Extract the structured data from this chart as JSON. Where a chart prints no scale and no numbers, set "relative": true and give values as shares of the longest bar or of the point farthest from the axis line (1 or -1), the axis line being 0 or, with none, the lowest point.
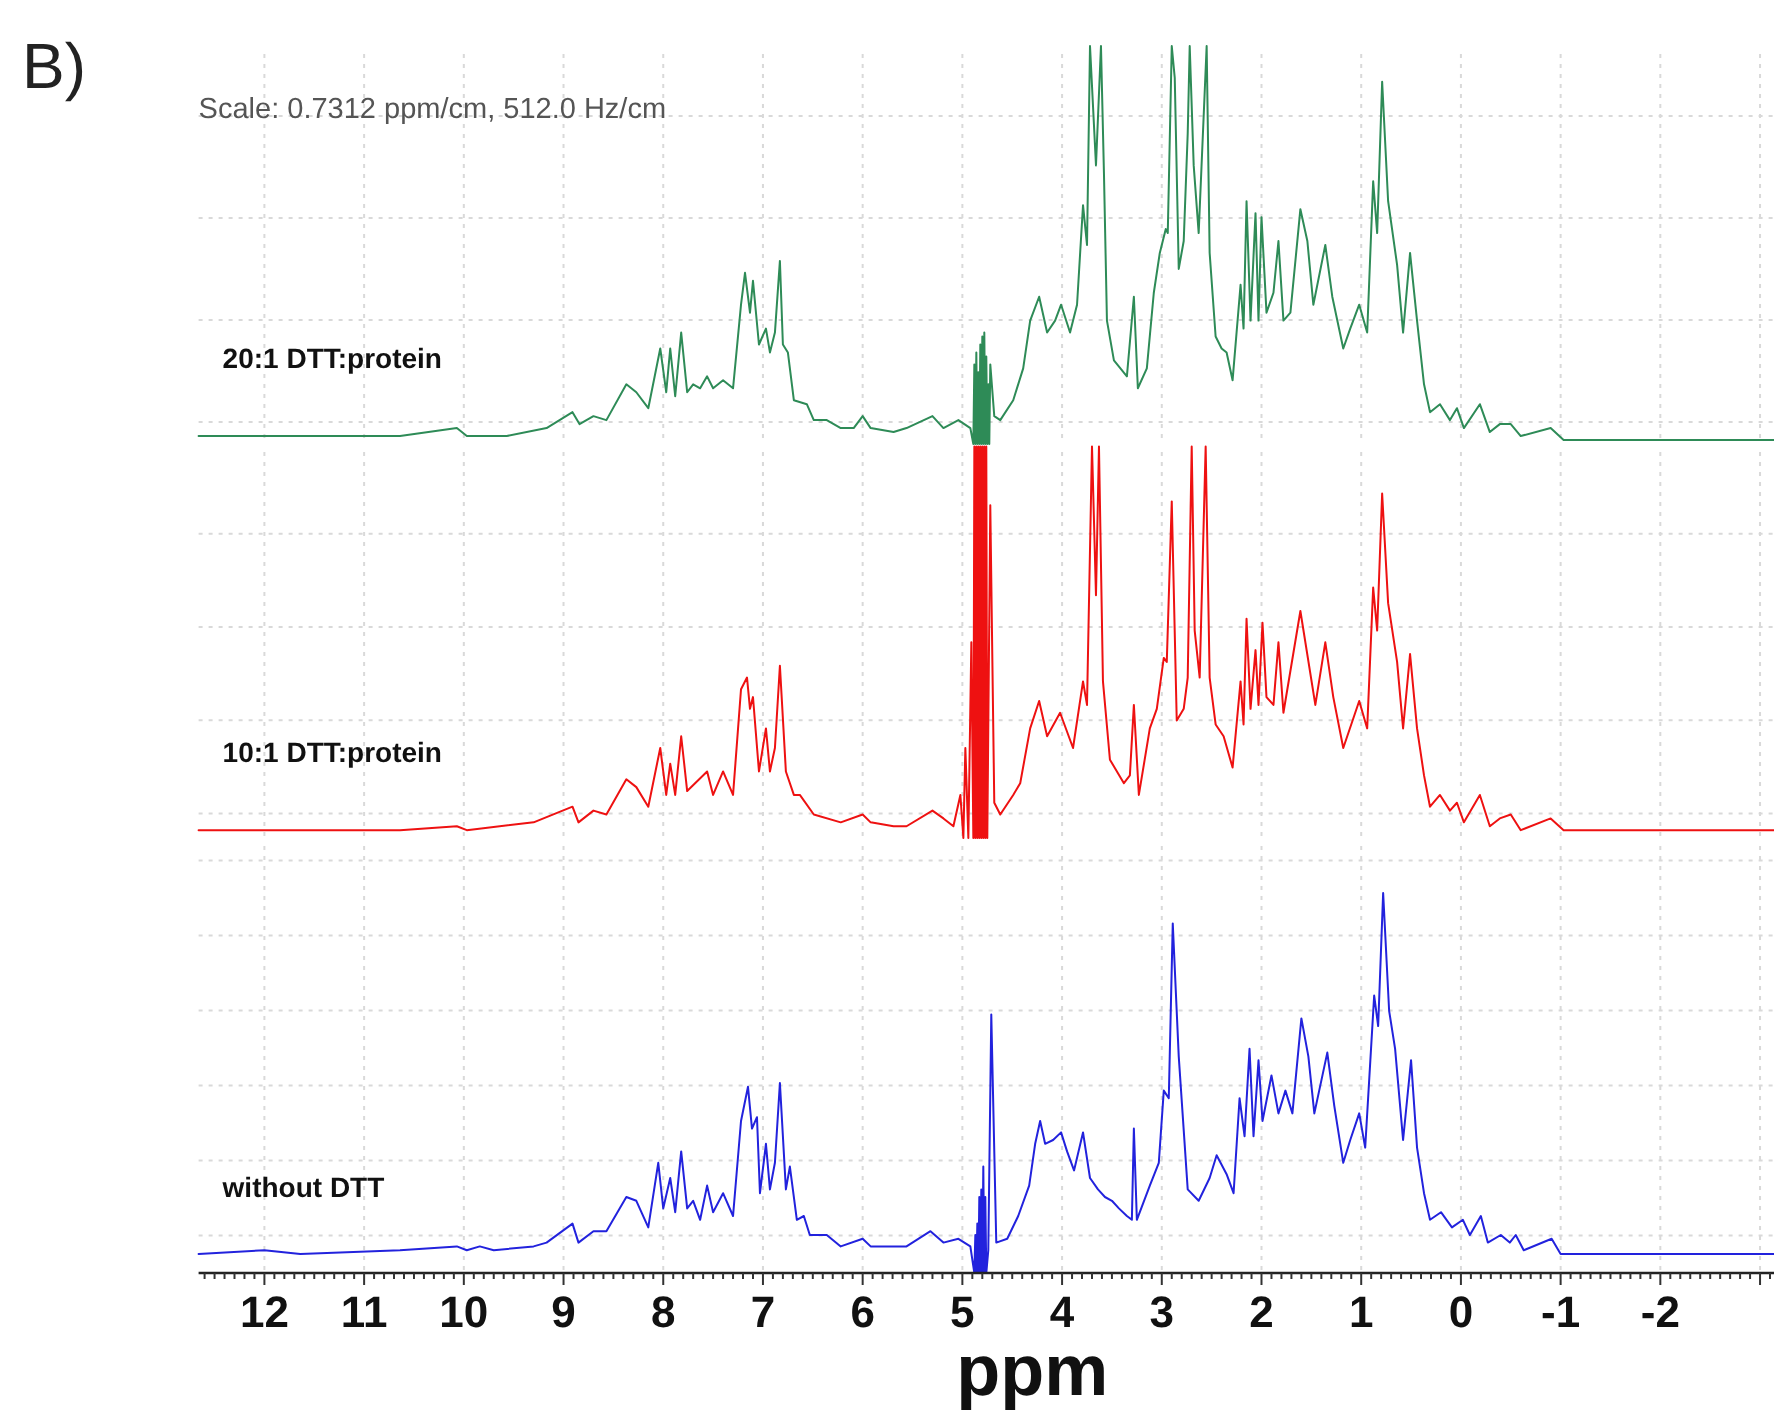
{
  "chart_data": [
    {
      "type": "line",
      "title": "B)",
      "annotations": [
        "Scale: 0.7312 ppm/cm, 512.0 Hz/cm"
      ],
      "relative": true,
      "grid": true,
      "tick_labels": false,
      "xlim": [
        12.66,
        -3.14
      ],
      "xticks": [
        12,
        11,
        10,
        9,
        8,
        7,
        6,
        5,
        4,
        3,
        2,
        1,
        0,
        -1,
        -2,
        -3
      ],
      "x": [
        12.66,
        11.98,
        10.64,
        10.07,
        9.97,
        9.57,
        9.17,
        8.91,
        8.84,
        8.7,
        8.57,
        8.37,
        8.27,
        8.15,
        8.03,
        7.97,
        7.93,
        7.88,
        7.82,
        7.76,
        7.7,
        7.63,
        7.56,
        7.5,
        7.4,
        7.3,
        7.22,
        7.18,
        7.13,
        7.1,
        7.04,
        6.97,
        6.93,
        6.88,
        6.83,
        6.8,
        6.75,
        6.69,
        6.56,
        6.49,
        6.36,
        6.22,
        6.09,
        6,
        5.92,
        5.69,
        5.56,
        5.3,
        5.19,
        5.04,
        4.92,
        4.89,
        4.88,
        4.87,
        4.86,
        4.85,
        4.84,
        4.83,
        4.82,
        4.81,
        4.8,
        4.79,
        4.78,
        4.77,
        4.76,
        4.75,
        4.74,
        4.73,
        4.72,
        4.68,
        4.62,
        4.49,
        4.39,
        4.32,
        4.23,
        4.15,
        4.07,
        4.01,
        3.92,
        3.85,
        3.79,
        3.75,
        3.72,
        3.66,
        3.61,
        3.58,
        3.55,
        3.48,
        3.35,
        3.28,
        3.24,
        3.15,
        3.08,
        3.02,
        2.96,
        2.94,
        2.9,
        2.87,
        2.83,
        2.78,
        2.74,
        2.72,
        2.68,
        2.63,
        2.55,
        2.52,
        2.46,
        2.4,
        2.35,
        2.29,
        2.21,
        2.18,
        2.15,
        2.11,
        2.06,
        2.03,
        2,
        1.95,
        1.88,
        1.83,
        1.78,
        1.71,
        1.61,
        1.54,
        1.48,
        1.36,
        1.29,
        1.18,
        1.11,
        1.02,
        0.94,
        0.88,
        0.84,
        0.79,
        0.73,
        0.64,
        0.58,
        0.51,
        0.44,
        0.37,
        0.31,
        0.21,
        0.11,
        0.04,
        -0.03,
        -0.19,
        -0.29,
        -0.39,
        -0.5,
        -0.6,
        -0.9,
        -1.03,
        -3.14
      ],
      "series": [
        {
          "name": "20:1 DTT:protein",
          "color": "#2e8b57",
          "values": [
            0.02,
            0.02,
            0.02,
            0.04,
            0.02,
            0.02,
            0.04,
            0.08,
            0.05,
            0.07,
            0.06,
            0.15,
            0.13,
            0.09,
            0.24,
            0.13,
            0.24,
            0.12,
            0.28,
            0.13,
            0.15,
            0.14,
            0.17,
            0.14,
            0.16,
            0.14,
            0.35,
            0.43,
            0.33,
            0.41,
            0.25,
            0.29,
            0.23,
            0.28,
            0.46,
            0.25,
            0.23,
            0.11,
            0.1,
            0.06,
            0.06,
            0.04,
            0.04,
            0.07,
            0.04,
            0.03,
            0.04,
            0.07,
            0.04,
            0.06,
            0.04,
            0,
            0.2,
            0,
            0.23,
            0,
            0.18,
            0,
            0.25,
            0,
            0.27,
            0,
            0.28,
            0,
            0.22,
            0,
            0.15,
            0,
            0.2,
            0.07,
            0.06,
            0.11,
            0.19,
            0.31,
            0.37,
            0.28,
            0.31,
            0.35,
            0.28,
            0.35,
            0.6,
            0.5,
            1,
            0.7,
            1,
            0.68,
            0.31,
            0.21,
            0.17,
            0.37,
            0.14,
            0.19,
            0.38,
            0.48,
            0.54,
            0.53,
            1,
            0.92,
            0.44,
            0.51,
            0.78,
            1,
            0.7,
            0.53,
            1,
            0.48,
            0.27,
            0.24,
            0.23,
            0.16,
            0.4,
            0.29,
            0.61,
            0.31,
            0.58,
            0.31,
            0.57,
            0.33,
            0.38,
            0.51,
            0.31,
            0.33,
            0.59,
            0.51,
            0.35,
            0.5,
            0.37,
            0.24,
            0.29,
            0.35,
            0.28,
            0.66,
            0.53,
            0.91,
            0.61,
            0.45,
            0.28,
            0.48,
            0.31,
            0.15,
            0.08,
            0.1,
            0.06,
            0.09,
            0.04,
            0.1,
            0.03,
            0.05,
            0.05,
            0.02,
            0.04,
            0.01,
            0.01
          ]
        }
      ]
    },
    {
      "type": "line",
      "relative": true,
      "grid": true,
      "tick_labels": false,
      "xlim": [
        12.66,
        -3.14
      ],
      "xticks": [
        12,
        11,
        10,
        9,
        8,
        7,
        6,
        5,
        4,
        3,
        2,
        1,
        0,
        -1,
        -2,
        -3
      ],
      "x": [
        12.66,
        11.98,
        10.64,
        10.07,
        9.97,
        9.3,
        8.91,
        8.85,
        8.7,
        8.57,
        8.37,
        8.27,
        8.15,
        8.03,
        7.97,
        7.93,
        7.88,
        7.82,
        7.76,
        7.56,
        7.5,
        7.4,
        7.3,
        7.22,
        7.16,
        7.13,
        7.1,
        7.04,
        6.97,
        6.93,
        6.88,
        6.83,
        6.77,
        6.69,
        6.63,
        6.49,
        6.22,
        6,
        5.92,
        5.69,
        5.56,
        5.3,
        5.19,
        5.09,
        5.02,
        4.99,
        4.97,
        4.94,
        4.91,
        4.89,
        4.88,
        4.87,
        4.86,
        4.85,
        4.84,
        4.83,
        4.82,
        4.81,
        4.8,
        4.79,
        4.78,
        4.77,
        4.76,
        4.75,
        4.72,
        4.68,
        4.62,
        4.49,
        4.42,
        4.32,
        4.23,
        4.15,
        4.02,
        3.89,
        3.79,
        3.75,
        3.7,
        3.66,
        3.63,
        3.59,
        3.52,
        3.38,
        3.32,
        3.28,
        3.23,
        3.12,
        3.05,
        2.98,
        2.95,
        2.9,
        2.85,
        2.78,
        2.74,
        2.7,
        2.67,
        2.62,
        2.56,
        2.52,
        2.46,
        2.38,
        2.29,
        2.21,
        2.18,
        2.15,
        2.11,
        2.06,
        2.03,
        1.99,
        1.95,
        1.88,
        1.83,
        1.78,
        1.61,
        1.46,
        1.36,
        1.28,
        1.18,
        1.02,
        0.94,
        0.88,
        0.84,
        0.79,
        0.73,
        0.64,
        0.58,
        0.51,
        0.44,
        0.37,
        0.31,
        0.21,
        0.11,
        0.04,
        -0.03,
        -0.19,
        -0.29,
        -0.39,
        -0.5,
        -0.6,
        -0.9,
        -1.03,
        -3.14
      ],
      "series": [
        {
          "name": "10:1 DTT:protein",
          "color": "#ee1111",
          "values": [
            0.02,
            0.02,
            0.02,
            0.03,
            0.02,
            0.04,
            0.08,
            0.04,
            0.07,
            0.06,
            0.15,
            0.13,
            0.08,
            0.23,
            0.11,
            0.19,
            0.11,
            0.26,
            0.12,
            0.17,
            0.11,
            0.17,
            0.11,
            0.38,
            0.41,
            0.33,
            0.36,
            0.17,
            0.28,
            0.17,
            0.23,
            0.44,
            0.17,
            0.11,
            0.11,
            0.06,
            0.04,
            0.06,
            0.04,
            0.03,
            0.03,
            0.07,
            0.05,
            0.03,
            0.11,
            0,
            0.23,
            0,
            0.5,
            0,
            1,
            0,
            1,
            0,
            1,
            0,
            1,
            0,
            1,
            0,
            1,
            0,
            1,
            0,
            0.85,
            0.09,
            0.06,
            0.11,
            0.14,
            0.28,
            0.35,
            0.26,
            0.32,
            0.23,
            0.4,
            0.34,
            1,
            0.62,
            1,
            0.4,
            0.2,
            0.14,
            0.16,
            0.34,
            0.11,
            0.28,
            0.33,
            0.46,
            0.45,
            0.86,
            0.3,
            0.33,
            0.41,
            1,
            0.53,
            0.41,
            1,
            0.41,
            0.29,
            0.26,
            0.18,
            0.4,
            0.29,
            0.56,
            0.33,
            0.48,
            0.34,
            0.55,
            0.36,
            0.34,
            0.5,
            0.32,
            0.58,
            0.34,
            0.5,
            0.36,
            0.23,
            0.35,
            0.28,
            0.64,
            0.53,
            0.88,
            0.6,
            0.45,
            0.28,
            0.47,
            0.28,
            0.16,
            0.08,
            0.11,
            0.07,
            0.09,
            0.04,
            0.11,
            0.03,
            0.05,
            0.06,
            0.02,
            0.05,
            0.02,
            0.02
          ]
        }
      ]
    },
    {
      "type": "line",
      "relative": true,
      "grid": true,
      "xlabel": "ppm",
      "xlim": [
        12.66,
        -3.14
      ],
      "xticks": [
        {
          "value": 12.6,
          "label": null
        },
        {
          "value": 12.5,
          "label": null
        },
        {
          "value": 12.4,
          "label": null
        },
        {
          "value": 12.3,
          "label": null
        },
        {
          "value": 12.2,
          "label": null
        },
        {
          "value": 12.1,
          "label": null
        },
        12,
        {
          "value": 11.9,
          "label": null
        },
        {
          "value": 11.8,
          "label": null
        },
        {
          "value": 11.7,
          "label": null
        },
        {
          "value": 11.6,
          "label": null
        },
        {
          "value": 11.5,
          "label": null
        },
        {
          "value": 11.4,
          "label": null
        },
        {
          "value": 11.3,
          "label": null
        },
        {
          "value": 11.2,
          "label": null
        },
        {
          "value": 11.1,
          "label": null
        },
        11,
        {
          "value": 10.9,
          "label": null
        },
        {
          "value": 10.8,
          "label": null
        },
        {
          "value": 10.7,
          "label": null
        },
        {
          "value": 10.6,
          "label": null
        },
        {
          "value": 10.5,
          "label": null
        },
        {
          "value": 10.4,
          "label": null
        },
        {
          "value": 10.3,
          "label": null
        },
        {
          "value": 10.2,
          "label": null
        },
        {
          "value": 10.1,
          "label": null
        },
        10,
        {
          "value": 9.9,
          "label": null
        },
        {
          "value": 9.8,
          "label": null
        },
        {
          "value": 9.7,
          "label": null
        },
        {
          "value": 9.6,
          "label": null
        },
        {
          "value": 9.5,
          "label": null
        },
        {
          "value": 9.4,
          "label": null
        },
        {
          "value": 9.3,
          "label": null
        },
        {
          "value": 9.2,
          "label": null
        },
        {
          "value": 9.1,
          "label": null
        },
        9,
        {
          "value": 8.9,
          "label": null
        },
        {
          "value": 8.8,
          "label": null
        },
        {
          "value": 8.7,
          "label": null
        },
        {
          "value": 8.6,
          "label": null
        },
        {
          "value": 8.5,
          "label": null
        },
        {
          "value": 8.4,
          "label": null
        },
        {
          "value": 8.3,
          "label": null
        },
        {
          "value": 8.2,
          "label": null
        },
        {
          "value": 8.1,
          "label": null
        },
        8,
        {
          "value": 7.9,
          "label": null
        },
        {
          "value": 7.8,
          "label": null
        },
        {
          "value": 7.7,
          "label": null
        },
        {
          "value": 7.6,
          "label": null
        },
        {
          "value": 7.5,
          "label": null
        },
        {
          "value": 7.4,
          "label": null
        },
        {
          "value": 7.3,
          "label": null
        },
        {
          "value": 7.2,
          "label": null
        },
        {
          "value": 7.1,
          "label": null
        },
        7,
        {
          "value": 6.9,
          "label": null
        },
        {
          "value": 6.8,
          "label": null
        },
        {
          "value": 6.7,
          "label": null
        },
        {
          "value": 6.6,
          "label": null
        },
        {
          "value": 6.5,
          "label": null
        },
        {
          "value": 6.4,
          "label": null
        },
        {
          "value": 6.3,
          "label": null
        },
        {
          "value": 6.2,
          "label": null
        },
        {
          "value": 6.1,
          "label": null
        },
        6,
        {
          "value": 5.9,
          "label": null
        },
        {
          "value": 5.8,
          "label": null
        },
        {
          "value": 5.7,
          "label": null
        },
        {
          "value": 5.6,
          "label": null
        },
        {
          "value": 5.5,
          "label": null
        },
        {
          "value": 5.4,
          "label": null
        },
        {
          "value": 5.3,
          "label": null
        },
        {
          "value": 5.2,
          "label": null
        },
        {
          "value": 5.1,
          "label": null
        },
        5,
        {
          "value": 4.9,
          "label": null
        },
        {
          "value": 4.8,
          "label": null
        },
        {
          "value": 4.7,
          "label": null
        },
        {
          "value": 4.6,
          "label": null
        },
        {
          "value": 4.5,
          "label": null
        },
        {
          "value": 4.4,
          "label": null
        },
        {
          "value": 4.3,
          "label": null
        },
        {
          "value": 4.2,
          "label": null
        },
        {
          "value": 4.1,
          "label": null
        },
        4,
        {
          "value": 3.9,
          "label": null
        },
        {
          "value": 3.8,
          "label": null
        },
        {
          "value": 3.7,
          "label": null
        },
        {
          "value": 3.6,
          "label": null
        },
        {
          "value": 3.5,
          "label": null
        },
        {
          "value": 3.4,
          "label": null
        },
        {
          "value": 3.3,
          "label": null
        },
        {
          "value": 3.2,
          "label": null
        },
        {
          "value": 3.1,
          "label": null
        },
        3,
        {
          "value": 2.9,
          "label": null
        },
        {
          "value": 2.8,
          "label": null
        },
        {
          "value": 2.7,
          "label": null
        },
        {
          "value": 2.6,
          "label": null
        },
        {
          "value": 2.5,
          "label": null
        },
        {
          "value": 2.4,
          "label": null
        },
        {
          "value": 2.3,
          "label": null
        },
        {
          "value": 2.2,
          "label": null
        },
        {
          "value": 2.1,
          "label": null
        },
        2,
        {
          "value": 1.9,
          "label": null
        },
        {
          "value": 1.8,
          "label": null
        },
        {
          "value": 1.7,
          "label": null
        },
        {
          "value": 1.6,
          "label": null
        },
        {
          "value": 1.5,
          "label": null
        },
        {
          "value": 1.4,
          "label": null
        },
        {
          "value": 1.3,
          "label": null
        },
        {
          "value": 1.2,
          "label": null
        },
        {
          "value": 1.1,
          "label": null
        },
        1,
        {
          "value": 0.9,
          "label": null
        },
        {
          "value": 0.8,
          "label": null
        },
        {
          "value": 0.7,
          "label": null
        },
        {
          "value": 0.6,
          "label": null
        },
        {
          "value": 0.5,
          "label": null
        },
        {
          "value": 0.4,
          "label": null
        },
        {
          "value": 0.3,
          "label": null
        },
        {
          "value": 0.2,
          "label": null
        },
        {
          "value": 0.1,
          "label": null
        },
        0,
        {
          "value": -0.1,
          "label": null
        },
        {
          "value": -0.2,
          "label": null
        },
        {
          "value": -0.3,
          "label": null
        },
        {
          "value": -0.4,
          "label": null
        },
        {
          "value": -0.5,
          "label": null
        },
        {
          "value": -0.6,
          "label": null
        },
        {
          "value": -0.7,
          "label": null
        },
        {
          "value": -0.8,
          "label": null
        },
        {
          "value": -0.9,
          "label": null
        },
        -1,
        {
          "value": -1.1,
          "label": null
        },
        {
          "value": -1.2,
          "label": null
        },
        {
          "value": -1.3,
          "label": null
        },
        {
          "value": -1.4,
          "label": null
        },
        {
          "value": -1.5,
          "label": null
        },
        {
          "value": -1.6,
          "label": null
        },
        {
          "value": -1.7,
          "label": null
        },
        {
          "value": -1.8,
          "label": null
        },
        {
          "value": -1.9,
          "label": null
        },
        -2,
        {
          "value": -2.1,
          "label": null
        },
        {
          "value": -2.2,
          "label": null
        },
        {
          "value": -2.3,
          "label": null
        },
        {
          "value": -2.4,
          "label": null
        },
        {
          "value": -2.5,
          "label": null
        },
        {
          "value": -2.6,
          "label": null
        },
        {
          "value": -2.7,
          "label": null
        },
        {
          "value": -2.8,
          "label": null
        },
        {
          "value": -2.9,
          "label": null
        },
        {
          "value": -3,
          "label": null
        },
        {
          "value": -3.1,
          "label": null
        }
      ],
      "x": [
        12.66,
        12,
        11.64,
        10.64,
        10.07,
        9.97,
        9.84,
        9.7,
        9.3,
        9.17,
        8.91,
        8.85,
        8.7,
        8.57,
        8.37,
        8.27,
        8.15,
        8.05,
        8,
        7.93,
        7.88,
        7.82,
        7.76,
        7.7,
        7.63,
        7.56,
        7.5,
        7.4,
        7.3,
        7.22,
        7.15,
        7.11,
        7.06,
        7.03,
        6.97,
        6.93,
        6.88,
        6.83,
        6.77,
        6.73,
        6.66,
        6.59,
        6.53,
        6.36,
        6.22,
        6,
        5.92,
        5.69,
        5.56,
        5.32,
        5.19,
        5.04,
        4.92,
        4.88,
        4.87,
        4.86,
        4.85,
        4.84,
        4.83,
        4.82,
        4.81,
        4.8,
        4.79,
        4.78,
        4.77,
        4.76,
        4.74,
        4.71,
        4.66,
        4.55,
        4.44,
        4.33,
        4.27,
        4.22,
        4.17,
        4.09,
        4.01,
        3.95,
        3.88,
        3.79,
        3.72,
        3.64,
        3.57,
        3.5,
        3.43,
        3.35,
        3.3,
        3.28,
        3.25,
        3.12,
        3.03,
        2.98,
        2.93,
        2.89,
        2.83,
        2.74,
        2.63,
        2.52,
        2.45,
        2.35,
        2.28,
        2.22,
        2.17,
        2.12,
        2.08,
        2.03,
        1.99,
        1.9,
        1.83,
        1.76,
        1.69,
        1.6,
        1.53,
        1.47,
        1.34,
        1.27,
        1.18,
        1.11,
        1.02,
        0.96,
        0.87,
        0.83,
        0.78,
        0.72,
        0.66,
        0.58,
        0.5,
        0.44,
        0.37,
        0.31,
        0.2,
        0.09,
        -0.02,
        -0.09,
        -0.2,
        -0.27,
        -0.4,
        -0.49,
        -0.55,
        -0.63,
        -0.91,
        -1,
        -3.14
      ],
      "series": [
        {
          "name": "without DTT",
          "color": "#2222dd",
          "values": [
            0.05,
            0.06,
            0.05,
            0.06,
            0.07,
            0.06,
            0.07,
            0.06,
            0.07,
            0.08,
            0.13,
            0.08,
            0.11,
            0.11,
            0.2,
            0.19,
            0.12,
            0.29,
            0.17,
            0.25,
            0.16,
            0.32,
            0.17,
            0.19,
            0.14,
            0.23,
            0.16,
            0.21,
            0.15,
            0.4,
            0.49,
            0.38,
            0.41,
            0.21,
            0.34,
            0.22,
            0.29,
            0.5,
            0.22,
            0.28,
            0.14,
            0.15,
            0.1,
            0.1,
            0.07,
            0.09,
            0.07,
            0.07,
            0.07,
            0.11,
            0.08,
            0.09,
            0.07,
            0,
            0.1,
            0,
            0.13,
            0,
            0.2,
            0,
            0.22,
            0,
            0.28,
            0,
            0.2,
            0,
            0.06,
            0.68,
            0.08,
            0.09,
            0.15,
            0.23,
            0.34,
            0.4,
            0.34,
            0.35,
            0.37,
            0.32,
            0.27,
            0.37,
            0.25,
            0.22,
            0.2,
            0.19,
            0.17,
            0.15,
            0.14,
            0.38,
            0.14,
            0.23,
            0.29,
            0.48,
            0.46,
            0.92,
            0.57,
            0.22,
            0.19,
            0.25,
            0.31,
            0.26,
            0.21,
            0.46,
            0.36,
            0.59,
            0.36,
            0.56,
            0.4,
            0.52,
            0.42,
            0.48,
            0.42,
            0.67,
            0.57,
            0.42,
            0.58,
            0.44,
            0.29,
            0.35,
            0.42,
            0.33,
            0.73,
            0.65,
            1,
            0.69,
            0.59,
            0.35,
            0.56,
            0.33,
            0.21,
            0.14,
            0.16,
            0.12,
            0.14,
            0.1,
            0.15,
            0.08,
            0.1,
            0.08,
            0.1,
            0.06,
            0.09,
            0.05,
            0.05
          ]
        }
      ]
    }
  ]
}
